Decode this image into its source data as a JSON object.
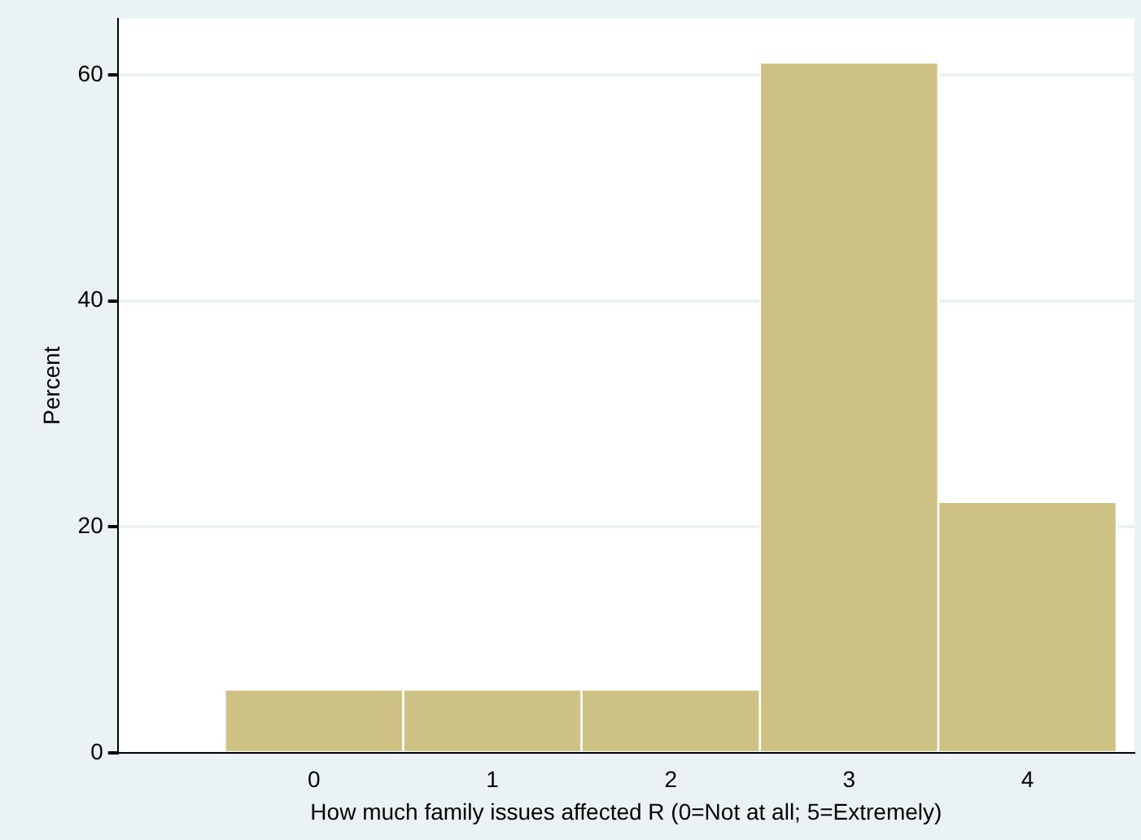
{
  "chart_data": {
    "type": "histogram",
    "xlabel": "How much family issues affected R (0=Not at all; 5=Extremely)",
    "ylabel": "Percent",
    "bins": [
      -0.5,
      0.5,
      1.5,
      2.5,
      3.5,
      4.5
    ],
    "values": [
      5.6,
      5.6,
      5.6,
      61.1,
      22.2
    ],
    "color": "#cdc283",
    "xlim": [
      -1.1,
      4.6
    ],
    "xticks": [
      0,
      1,
      2,
      3,
      4
    ],
    "ylim": [
      0,
      65
    ],
    "yticks": [
      0,
      20,
      40,
      60
    ],
    "grid": "y",
    "legend": false
  }
}
